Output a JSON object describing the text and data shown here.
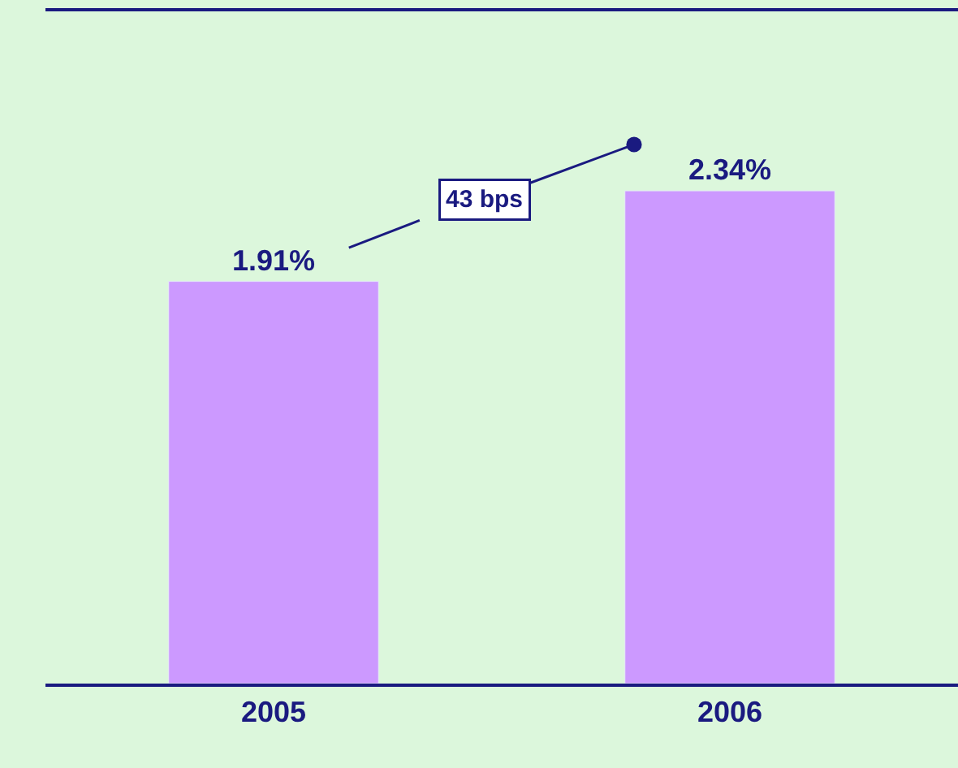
{
  "chart_data": {
    "type": "bar",
    "categories": [
      "2005",
      "2006"
    ],
    "values": [
      1.91,
      2.34
    ],
    "value_labels": [
      "1.91%",
      "2.34%"
    ],
    "color": "#cc99ff",
    "ylim": [
      0,
      3.2
    ],
    "tick_labels": "x",
    "grid": false,
    "legend": false,
    "annotations": [
      "43 bps"
    ]
  }
}
